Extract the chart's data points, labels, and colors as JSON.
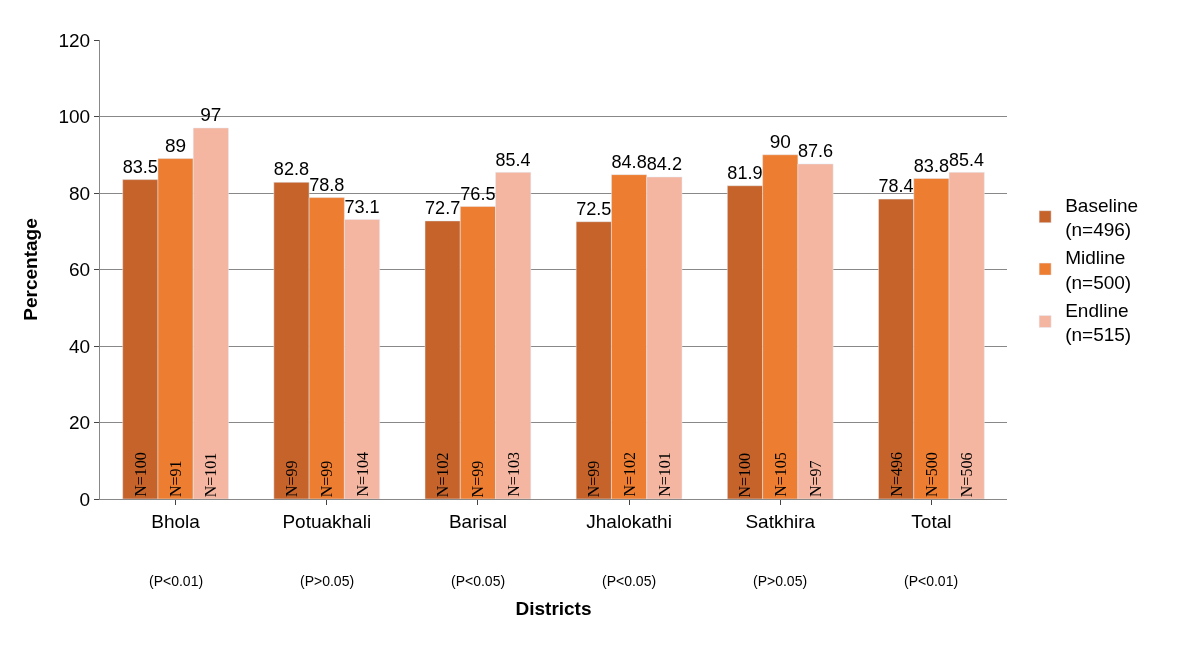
{
  "chart_data": {
    "type": "bar",
    "xlabel": "Districts",
    "ylabel": "Percentage",
    "categories": [
      "Bhola",
      "Potuakhali",
      "Barisal",
      "Jhalokathi",
      "Satkhira",
      "Total"
    ],
    "series": [
      {
        "name": "Baseline\n(n=496)",
        "color": "#c5632b",
        "values": [
          83.5,
          82.8,
          72.7,
          72.5,
          81.9,
          78.4
        ]
      },
      {
        "name": "Midline\n(n=500)",
        "color": "#ed7d31",
        "values": [
          89,
          78.8,
          76.5,
          84.8,
          90,
          83.8
        ]
      },
      {
        "name": "Endline\n(n=515)",
        "color": "#f4b6a0",
        "values": [
          97,
          73.1,
          85.4,
          84.2,
          87.6,
          85.4
        ]
      }
    ],
    "data_labels": true,
    "ylim": [
      0,
      120
    ],
    "yticks": [
      0,
      20,
      40,
      60,
      80,
      100,
      120
    ],
    "grid": "y",
    "legend": "right",
    "annotations": [
      {
        "text": "N=100",
        "x": "Bhola",
        "y": 0
      },
      {
        "text": "N=99",
        "x": "Potuakhali",
        "y": 0
      },
      {
        "text": "N=102",
        "x": "Barisal",
        "y": 0
      },
      {
        "text": "N=99",
        "x": "Jhalokathi",
        "y": 0
      },
      {
        "text": "N=100",
        "x": "Satkhira",
        "y": 0
      },
      {
        "text": "N=496",
        "x": "Total",
        "y": 0
      },
      {
        "text": "N=91",
        "x": "Bhola",
        "y": 0
      },
      {
        "text": "N=99",
        "x": "Potuakhali",
        "y": 0
      },
      {
        "text": "N=99",
        "x": "Barisal",
        "y": 0
      },
      {
        "text": "N=102",
        "x": "Jhalokathi",
        "y": 0
      },
      {
        "text": "N=105",
        "x": "Satkhira",
        "y": 0
      },
      {
        "text": "N=500",
        "x": "Total",
        "y": 0
      },
      {
        "text": "N=101",
        "x": "Bhola",
        "y": 0
      },
      {
        "text": "N=104",
        "x": "Potuakhali",
        "y": 0
      },
      {
        "text": "N=103",
        "x": "Barisal",
        "y": 0
      },
      {
        "text": "N=101",
        "x": "Jhalokathi",
        "y": 0
      },
      {
        "text": "N=97",
        "x": "Satkhira",
        "y": 0
      },
      {
        "text": "N=506",
        "x": "Total",
        "y": 0
      },
      "(P<0.01)",
      "(P>0.05)",
      "(P<0.05)",
      "(P<0.05)",
      "(P>0.05)",
      "(P<0.01)"
    ]
  }
}
